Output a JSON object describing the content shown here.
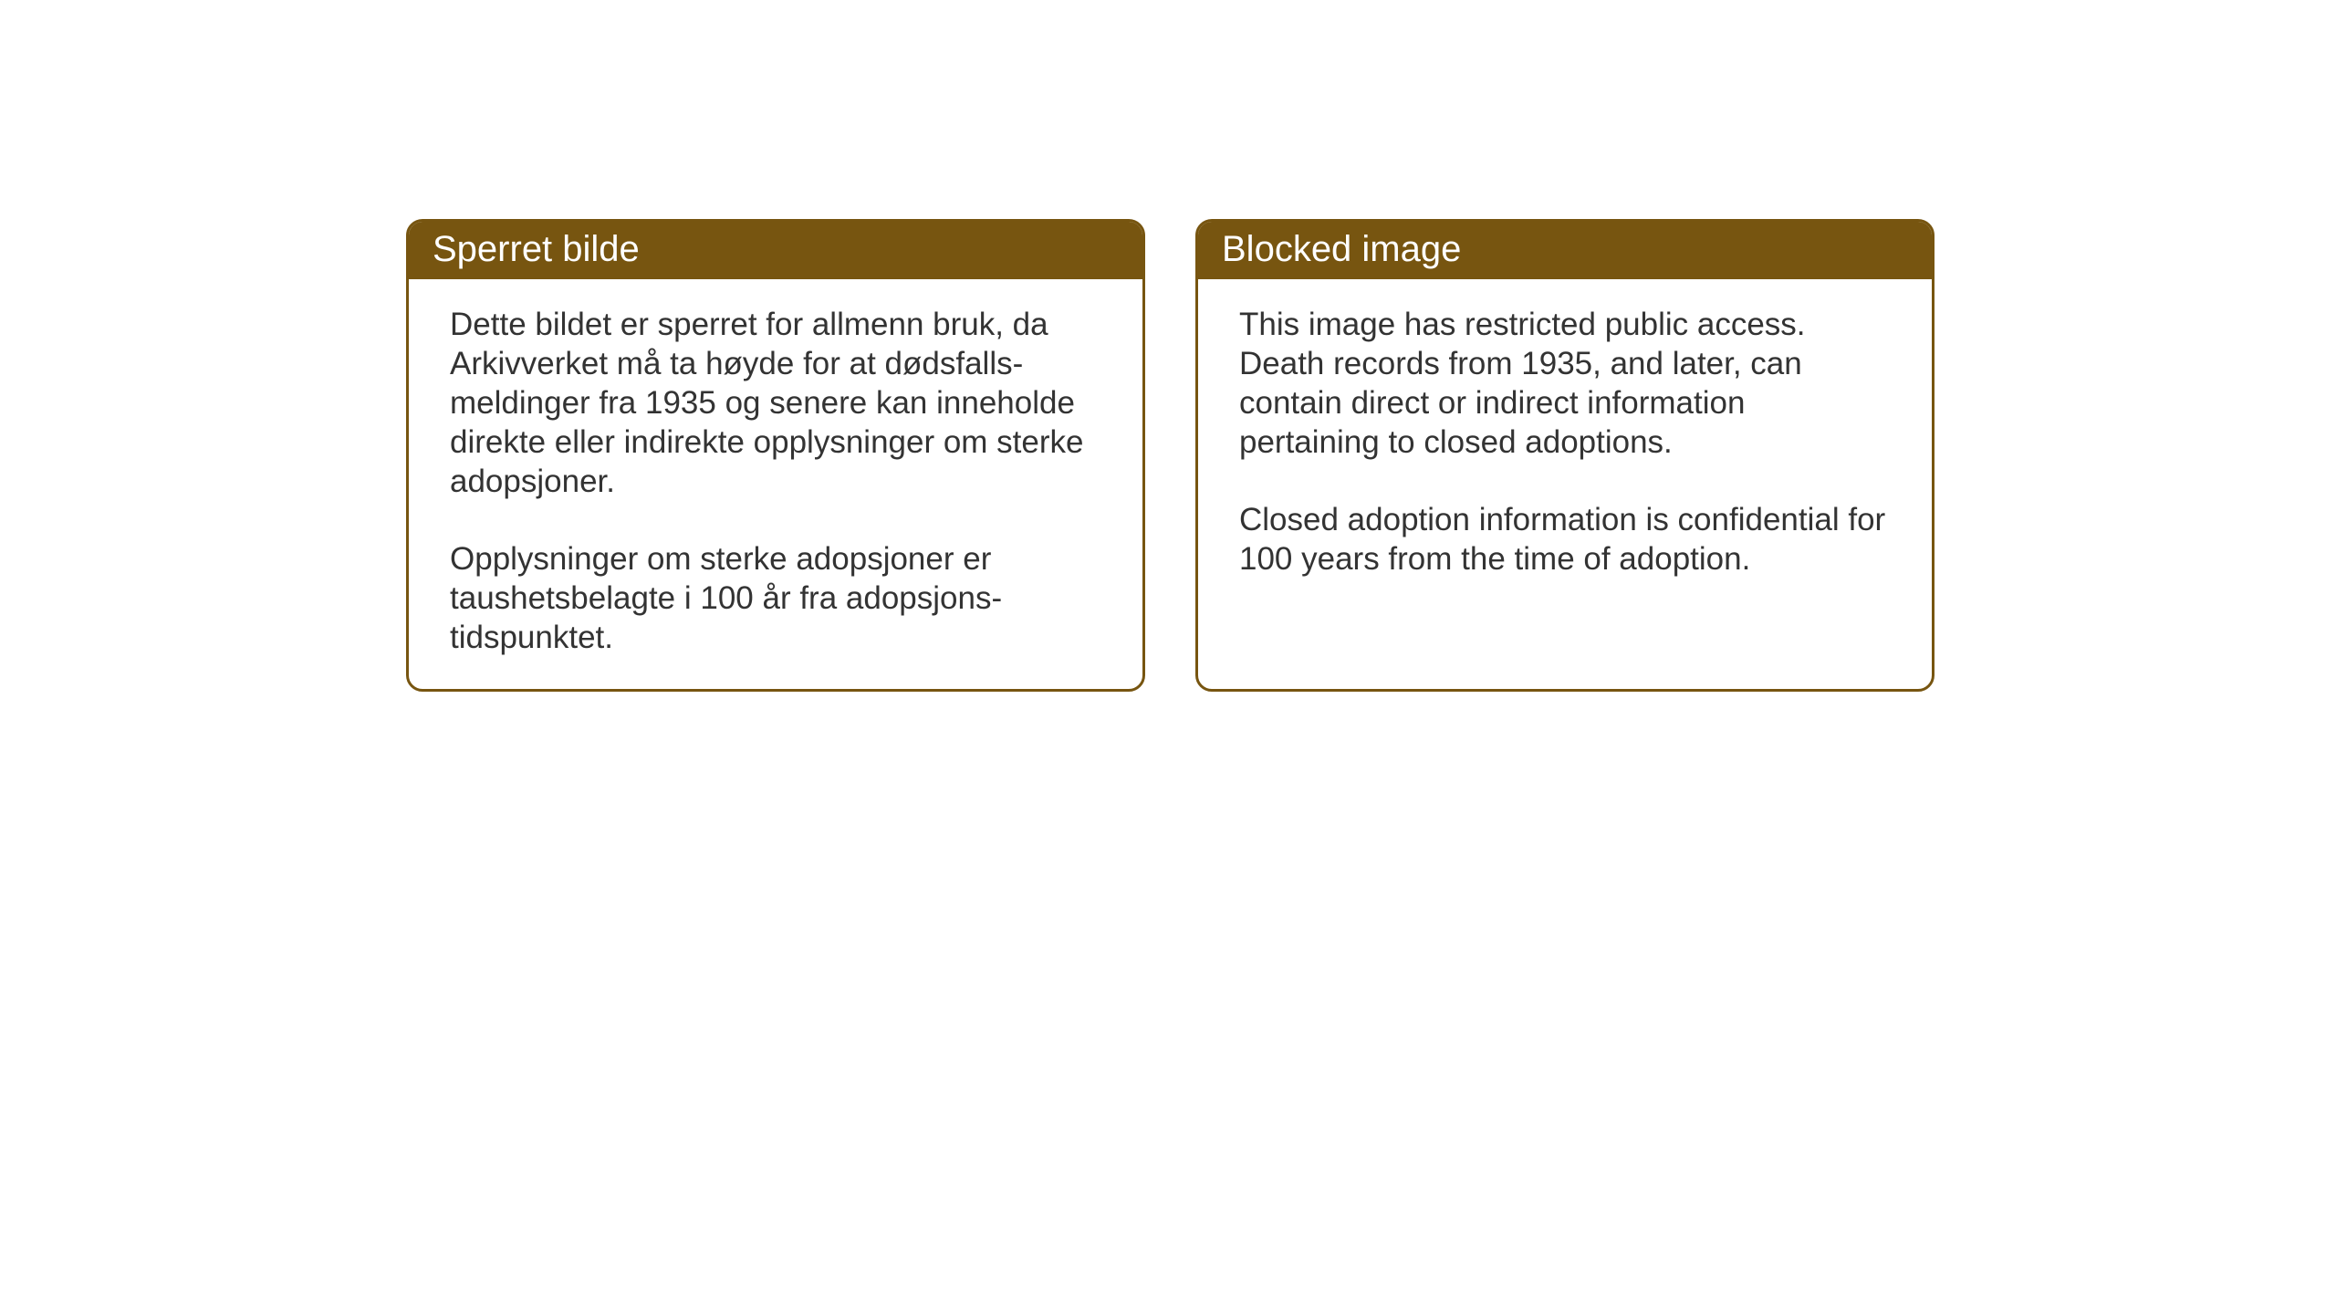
{
  "layout": {
    "background_color": "#ffffff",
    "card_border_color": "#775510",
    "card_border_width": 3,
    "card_border_radius": 18,
    "header_background": "#775510",
    "header_text_color": "#ffffff",
    "body_text_color": "#333333",
    "header_fontsize": 40,
    "body_fontsize": 35
  },
  "cards": {
    "norwegian": {
      "title": "Sperret bilde",
      "paragraph1": "Dette bildet er sperret for allmenn bruk, da Arkivverket må ta høyde for at dødsfalls-meldinger fra 1935 og senere kan inneholde direkte eller indirekte opplysninger om sterke adopsjoner.",
      "paragraph2": "Opplysninger om sterke adopsjoner er taushetsbelagte i 100 år fra adopsjons-tidspunktet."
    },
    "english": {
      "title": "Blocked image",
      "paragraph1": "This image has restricted public access. Death records from 1935, and later, can contain direct or indirect information pertaining to closed adoptions.",
      "paragraph2": "Closed adoption information is confidential for 100 years from the time of adoption."
    }
  }
}
